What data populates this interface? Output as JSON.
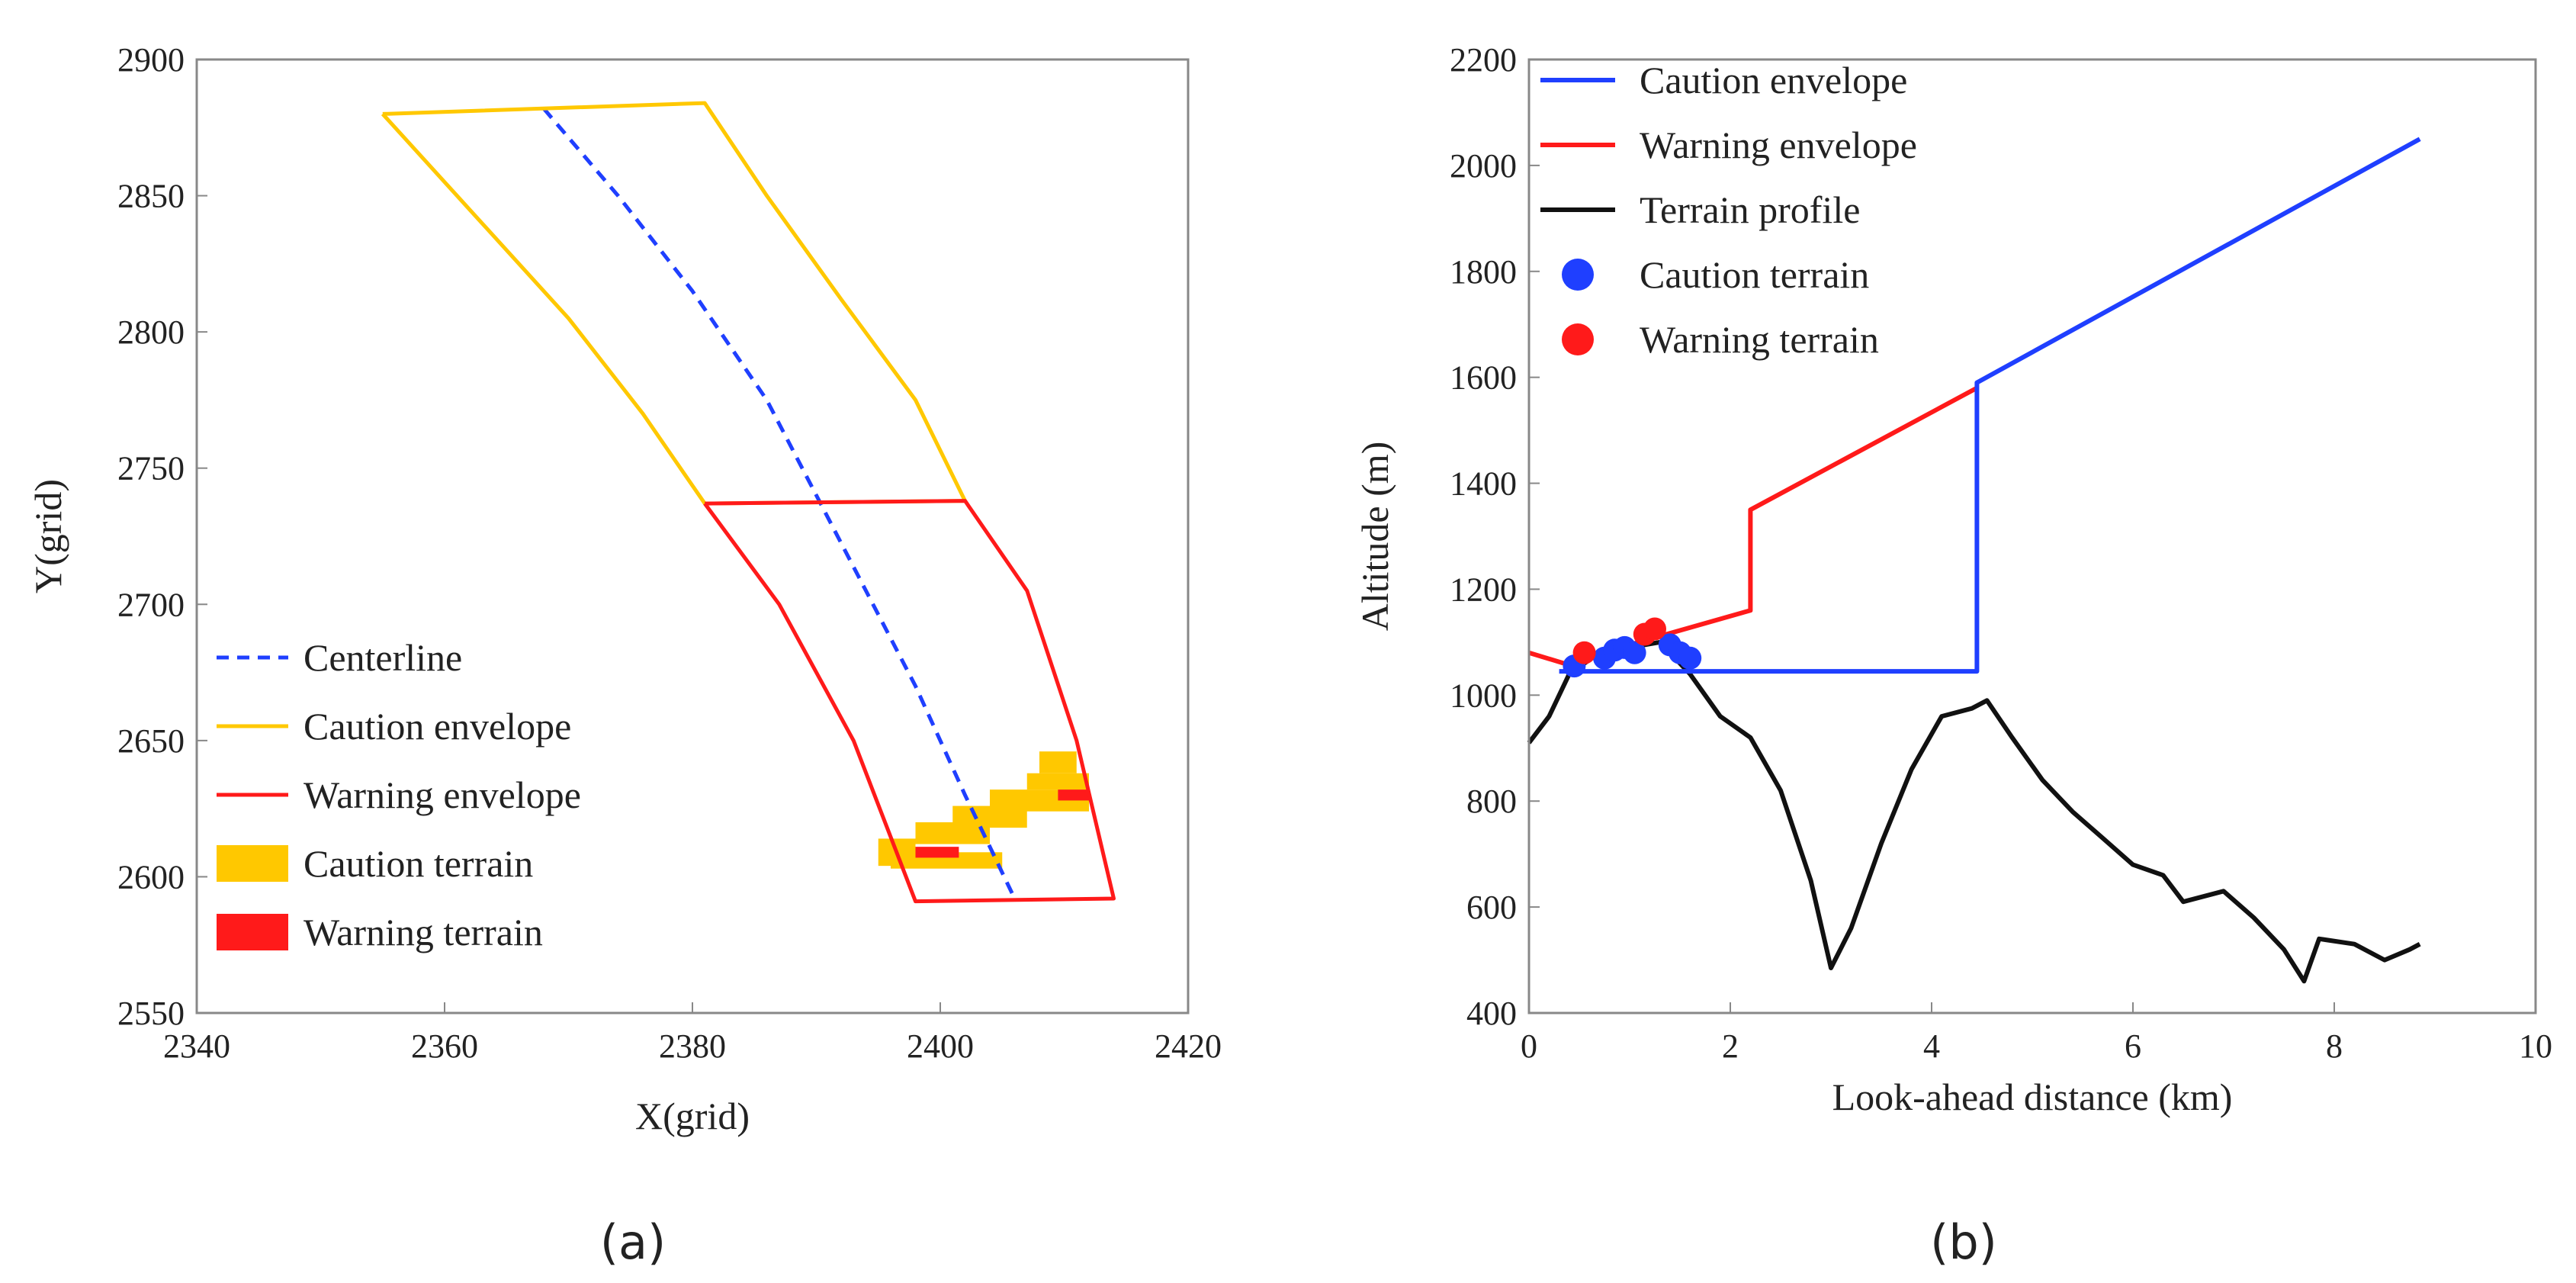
{
  "chart_data": [
    {
      "type": "line",
      "panel_label": "(a)",
      "xlabel": "X(grid)",
      "ylabel": "Y(grid)",
      "xlim": [
        2340,
        2420
      ],
      "ylim": [
        2550,
        2900
      ],
      "xticks": [
        2340,
        2360,
        2380,
        2400,
        2420
      ],
      "yticks": [
        2550,
        2600,
        2650,
        2700,
        2750,
        2800,
        2850,
        2900
      ],
      "grid": false,
      "legend_position": "lower-left",
      "colors": {
        "centerline": "#1f3fff",
        "caution": "#ffc800",
        "warning": "#ff1a1a"
      },
      "series": [
        {
          "name": "Centerline",
          "style": "dashed",
          "x": [
            2368,
            2374,
            2380,
            2386,
            2390,
            2394,
            2398,
            2402,
            2406
          ],
          "y": [
            2882,
            2850,
            2815,
            2775,
            2740,
            2705,
            2670,
            2630,
            2592
          ]
        },
        {
          "name": "Caution envelope",
          "style": "solid",
          "x": [
            2355,
            2362,
            2370,
            2376,
            2381,
            2402,
            2398,
            2392,
            2386,
            2381,
            2355
          ],
          "y": [
            2880,
            2845,
            2805,
            2770,
            2737,
            2738,
            2775,
            2812,
            2850,
            2884,
            2880
          ]
        },
        {
          "name": "Warning envelope",
          "style": "solid",
          "x": [
            2381,
            2387,
            2393,
            2398,
            2414,
            2411,
            2407,
            2402,
            2381
          ],
          "y": [
            2737,
            2700,
            2650,
            2591,
            2592,
            2650,
            2705,
            2738,
            2737
          ]
        }
      ],
      "terrain": [
        {
          "name": "Caution terrain",
          "cells": [
            {
              "x": [
                2395,
                2398
              ],
              "y": [
                2604,
                2614
              ]
            },
            {
              "x": [
                2396,
                2405
              ],
              "y": [
                2603,
                2609
              ]
            },
            {
              "x": [
                2398,
                2404
              ],
              "y": [
                2612,
                2620
              ]
            },
            {
              "x": [
                2401,
                2407
              ],
              "y": [
                2618,
                2626
              ]
            },
            {
              "x": [
                2404,
                2412
              ],
              "y": [
                2624,
                2632
              ]
            },
            {
              "x": [
                2407,
                2412
              ],
              "y": [
                2632,
                2638
              ]
            },
            {
              "x": [
                2408,
                2411
              ],
              "y": [
                2638,
                2646
              ]
            }
          ]
        },
        {
          "name": "Warning terrain",
          "cells": [
            {
              "x": [
                2398,
                2401.5
              ],
              "y": [
                2607,
                2611
              ]
            },
            {
              "x": [
                2409.5,
                2412
              ],
              "y": [
                2628,
                2632
              ]
            }
          ]
        }
      ]
    },
    {
      "type": "line",
      "panel_label": "(b)",
      "xlabel": "Look-ahead distance (km)",
      "ylabel": "Altitude (m)",
      "xlim": [
        0,
        10
      ],
      "ylim": [
        400,
        2200
      ],
      "xticks": [
        0,
        2,
        4,
        6,
        8,
        10
      ],
      "yticks": [
        400,
        600,
        800,
        1000,
        1200,
        1400,
        1600,
        1800,
        2000,
        2200
      ],
      "grid": false,
      "legend_position": "top-left",
      "colors": {
        "caution": "#1f3fff",
        "warning": "#ff1a1a",
        "terrain": "#111111"
      },
      "series": [
        {
          "name": "Caution envelope",
          "x": [
            0.3,
            4.45,
            4.45,
            8.85
          ],
          "y": [
            1045,
            1045,
            1590,
            2050
          ]
        },
        {
          "name": "Warning envelope",
          "x": [
            0,
            0.35,
            2.2,
            2.2,
            4.45
          ],
          "y": [
            1080,
            1060,
            1160,
            1350,
            1580
          ]
        },
        {
          "name": "Terrain profile",
          "x": [
            0,
            0.2,
            0.4,
            0.7,
            1.0,
            1.3,
            1.6,
            1.9,
            2.2,
            2.5,
            2.8,
            3.0,
            3.2,
            3.5,
            3.8,
            4.1,
            4.4,
            4.55,
            4.8,
            5.1,
            5.4,
            5.7,
            6.0,
            6.3,
            6.5,
            6.9,
            7.2,
            7.5,
            7.7,
            7.85,
            8.2,
            8.5,
            8.75,
            8.85
          ],
          "y": [
            910,
            960,
            1040,
            1080,
            1090,
            1100,
            1040,
            960,
            920,
            820,
            650,
            485,
            560,
            720,
            860,
            960,
            975,
            990,
            920,
            840,
            780,
            730,
            680,
            660,
            610,
            630,
            580,
            520,
            460,
            540,
            530,
            500,
            520,
            530
          ]
        }
      ],
      "markers": [
        {
          "name": "Caution terrain",
          "x": [
            0.45,
            0.75,
            0.85,
            0.95,
            1.05,
            1.4,
            1.5,
            1.6
          ],
          "y": [
            1055,
            1070,
            1085,
            1090,
            1080,
            1095,
            1080,
            1070
          ]
        },
        {
          "name": "Warning terrain",
          "x": [
            0.55,
            1.15,
            1.25
          ],
          "y": [
            1080,
            1115,
            1125
          ]
        }
      ]
    }
  ]
}
